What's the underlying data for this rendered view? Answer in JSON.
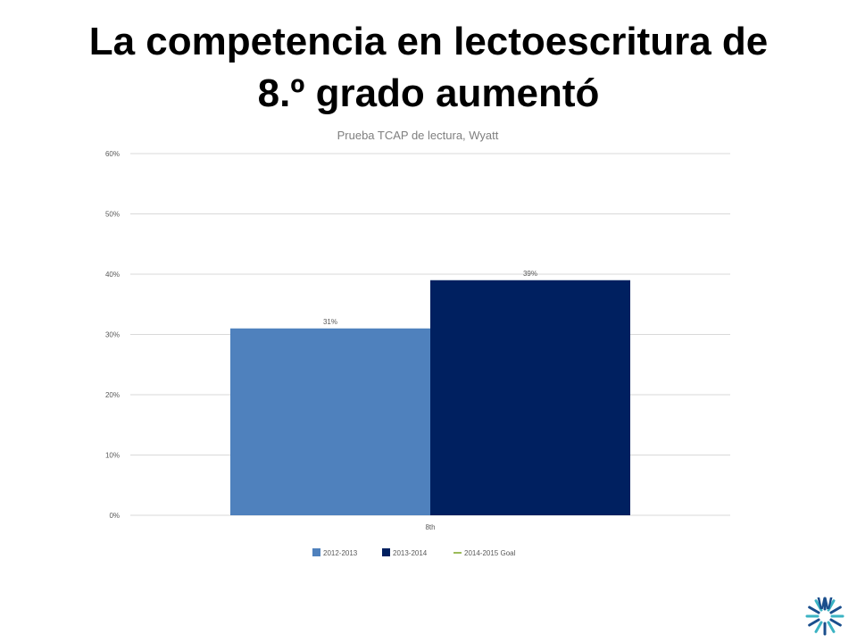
{
  "slide": {
    "title_line1": "La competencia en lectoescritura de",
    "title_line2": "8.º grado aumentó"
  },
  "colors": {
    "series_2012_2013": "#4f81bd",
    "series_2013_2014": "#002060",
    "series_goal": "#9bbb59",
    "gridline": "#d9d9d9",
    "axis_text": "#595959",
    "chart_title_text": "#7f7f7f",
    "logo_blue": "#1a4e8c",
    "logo_teal": "#3bb3c3"
  },
  "logo": {
    "icon": "starburst-w-logo-icon",
    "letter": "W"
  },
  "chart_data": {
    "type": "bar",
    "title": "Prueba TCAP de lectura, Wyatt",
    "xlabel": "",
    "ylabel": "",
    "categories": [
      "8th"
    ],
    "y_ticks": [
      "0%",
      "10%",
      "20%",
      "30%",
      "40%",
      "50%",
      "60%"
    ],
    "ylim": [
      0,
      60
    ],
    "grid": true,
    "legend_position": "bottom",
    "series": [
      {
        "name": "2012-2013",
        "values": [
          31
        ],
        "labels": [
          "31%"
        ]
      },
      {
        "name": "2013-2014",
        "values": [
          39
        ],
        "labels": [
          "39%"
        ]
      },
      {
        "name": "2014-2015 Goal",
        "values": [
          null
        ],
        "labels": [
          ""
        ]
      }
    ]
  }
}
